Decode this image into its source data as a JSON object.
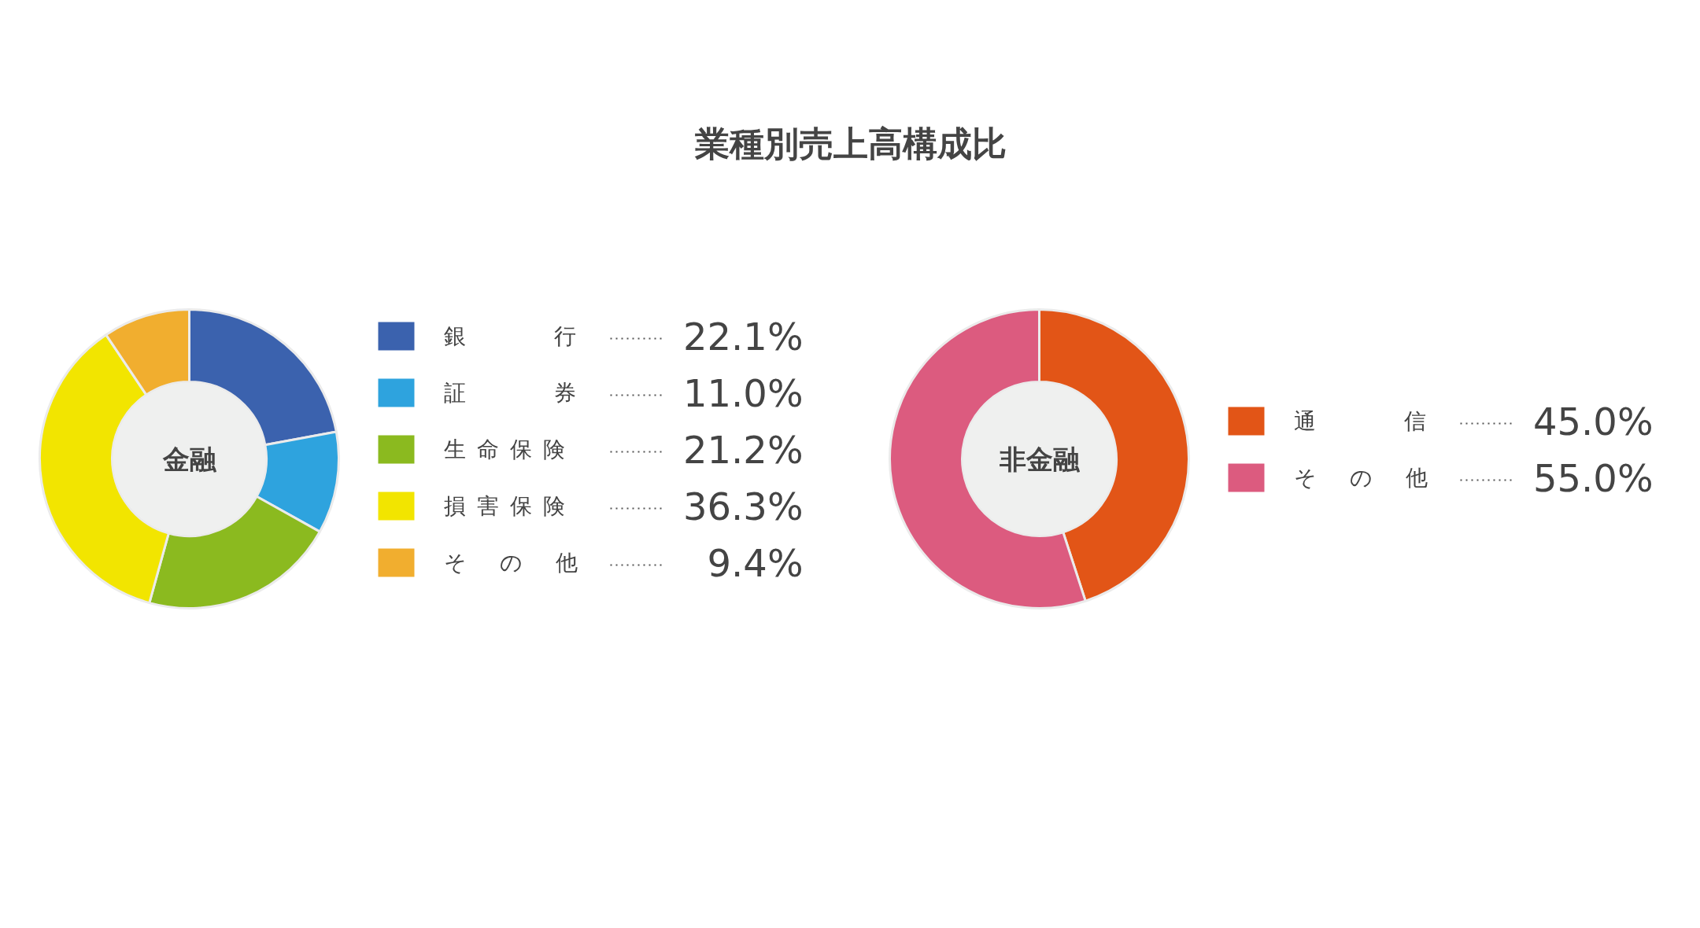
{
  "chart_data": [
    {
      "type": "donut",
      "title": "業種別売上高構成比",
      "annotations": [
        "金融"
      ],
      "categories": [
        "銀行",
        "証券",
        "生命保険",
        "損害保険",
        "その他"
      ],
      "values": [
        22.1,
        11.0,
        21.2,
        36.3,
        9.4
      ],
      "value_labels": [
        "22.1%",
        "11.0%",
        "21.2%",
        "36.3%",
        "9.4%"
      ],
      "colors": [
        "#3b62ae",
        "#2ea3de",
        "#8bba1f",
        "#f2e500",
        "#f1ae2f"
      ],
      "legend": "right"
    },
    {
      "type": "donut",
      "annotations": [
        "非金融"
      ],
      "categories": [
        "通信",
        "その他"
      ],
      "values": [
        45.0,
        55.0
      ],
      "value_labels": [
        "45.0%",
        "55.0%"
      ],
      "colors": [
        "#e25517",
        "#dc5b7f"
      ],
      "legend": "right"
    }
  ]
}
